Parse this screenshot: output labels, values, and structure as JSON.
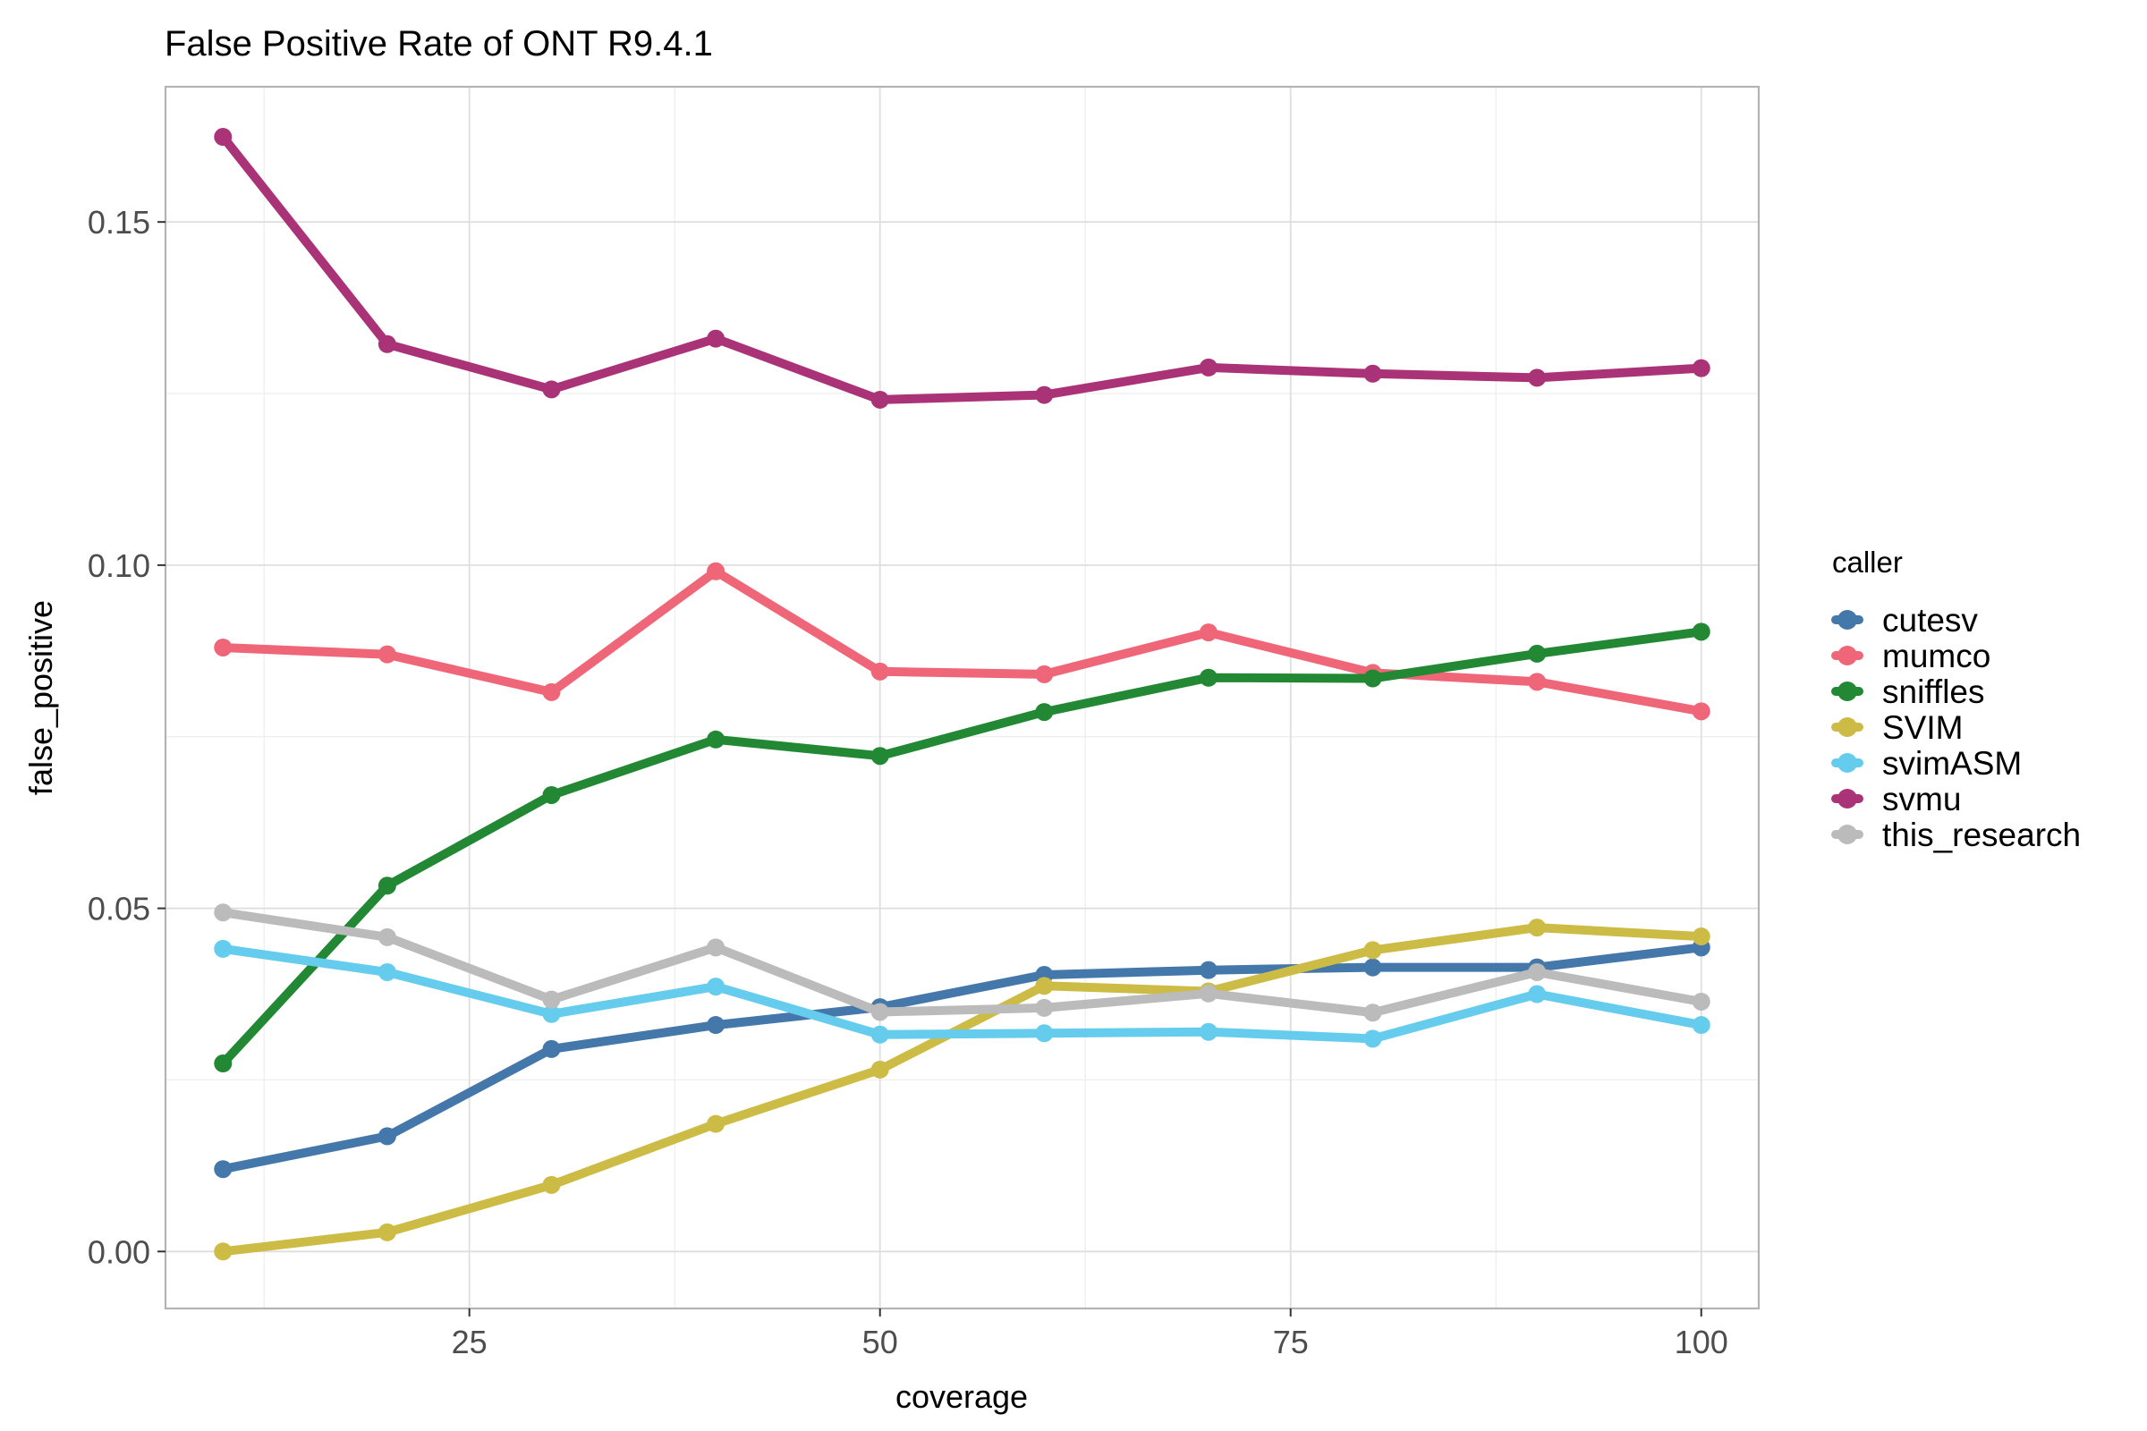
{
  "chart_data": {
    "type": "line",
    "title": "False Positive Rate of ONT R9.4.1",
    "xlabel": "coverage",
    "ylabel": "false_positive",
    "xlim": [
      6.5,
      103.5
    ],
    "ylim": [
      -0.0083,
      0.1697
    ],
    "x_ticks": [
      25,
      50,
      75,
      100
    ],
    "x_tick_labels": [
      "25",
      "50",
      "75",
      "100"
    ],
    "y_ticks": [
      0.0,
      0.05,
      0.1,
      0.15
    ],
    "y_tick_labels": [
      "0.00",
      "0.05",
      "0.10",
      "0.15"
    ],
    "grid": true,
    "legend_title": "caller",
    "legend_position": "right",
    "x": [
      10,
      20,
      30,
      40,
      50,
      60,
      70,
      80,
      90,
      100
    ],
    "series": [
      {
        "name": "cutesv",
        "color": "#4477AA",
        "values": [
          0.012,
          0.0168,
          0.0295,
          0.033,
          0.0356,
          0.0403,
          0.041,
          0.0414,
          0.0414,
          0.0443
        ]
      },
      {
        "name": "mumco",
        "color": "#EE6677",
        "values": [
          0.088,
          0.087,
          0.0815,
          0.0991,
          0.0845,
          0.0841,
          0.0902,
          0.0843,
          0.083,
          0.0787
        ]
      },
      {
        "name": "sniffles",
        "color": "#228833",
        "values": [
          0.0274,
          0.0533,
          0.0665,
          0.0746,
          0.0722,
          0.0786,
          0.0836,
          0.0835,
          0.0871,
          0.0903
        ]
      },
      {
        "name": "SVIM",
        "color": "#CCBB44",
        "values": [
          0.0,
          0.0028,
          0.0097,
          0.0186,
          0.0265,
          0.0387,
          0.0379,
          0.0439,
          0.0472,
          0.0459
        ]
      },
      {
        "name": "svimASM",
        "color": "#66CCEE",
        "values": [
          0.0441,
          0.0407,
          0.0346,
          0.0386,
          0.0316,
          0.0318,
          0.032,
          0.031,
          0.0375,
          0.033
        ]
      },
      {
        "name": "svmu",
        "color": "#AA3377",
        "values": [
          0.1624,
          0.1322,
          0.1256,
          0.133,
          0.1241,
          0.1248,
          0.1288,
          0.1279,
          0.1273,
          0.1287
        ]
      },
      {
        "name": "this_research",
        "color": "#BBBBBB",
        "values": [
          0.0494,
          0.0458,
          0.0367,
          0.0443,
          0.0349,
          0.0355,
          0.0376,
          0.0348,
          0.0407,
          0.0364
        ]
      }
    ]
  }
}
